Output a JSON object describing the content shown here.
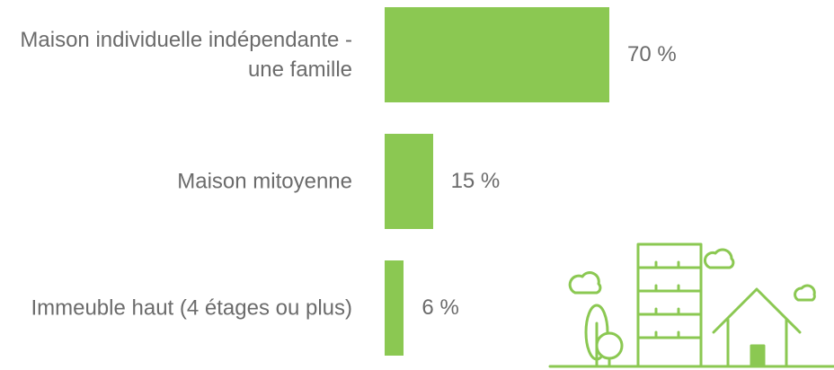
{
  "chart_data": {
    "type": "bar",
    "orientation": "horizontal",
    "categories": [
      "Maison individuelle indépendante - une famille",
      "Maison mitoyenne",
      "Immeuble haut (4 étages ou plus)"
    ],
    "values": [
      70,
      15,
      6
    ],
    "value_labels": [
      "70 %",
      "15 %",
      "6 %"
    ],
    "color": "#8bc852"
  }
}
